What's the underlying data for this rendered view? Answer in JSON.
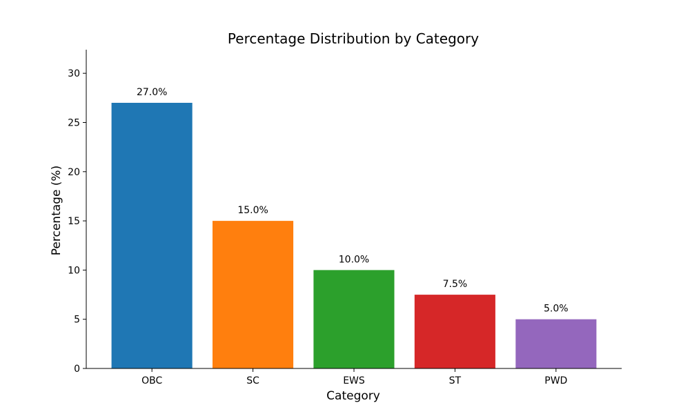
{
  "chart_data": {
    "type": "bar",
    "title": "Percentage Distribution by Category",
    "xlabel": "Category",
    "ylabel": "Percentage (%)",
    "categories": [
      "OBC",
      "SC",
      "EWS",
      "ST",
      "PWD"
    ],
    "values": [
      27.0,
      15.0,
      10.0,
      7.5,
      5.0
    ],
    "value_labels": [
      "27.0%",
      "15.0%",
      "10.0%",
      "7.5%",
      "5.0%"
    ],
    "colors": [
      "#1f77b4",
      "#ff7f0e",
      "#2ca02c",
      "#d62728",
      "#9467bd"
    ],
    "ylim": [
      0,
      32.4
    ],
    "yticks": [
      0,
      5,
      10,
      15,
      20,
      25,
      30
    ],
    "ytick_labels": [
      "0",
      "5",
      "10",
      "15",
      "20",
      "25",
      "30"
    ],
    "grid": false,
    "legend": "none"
  }
}
